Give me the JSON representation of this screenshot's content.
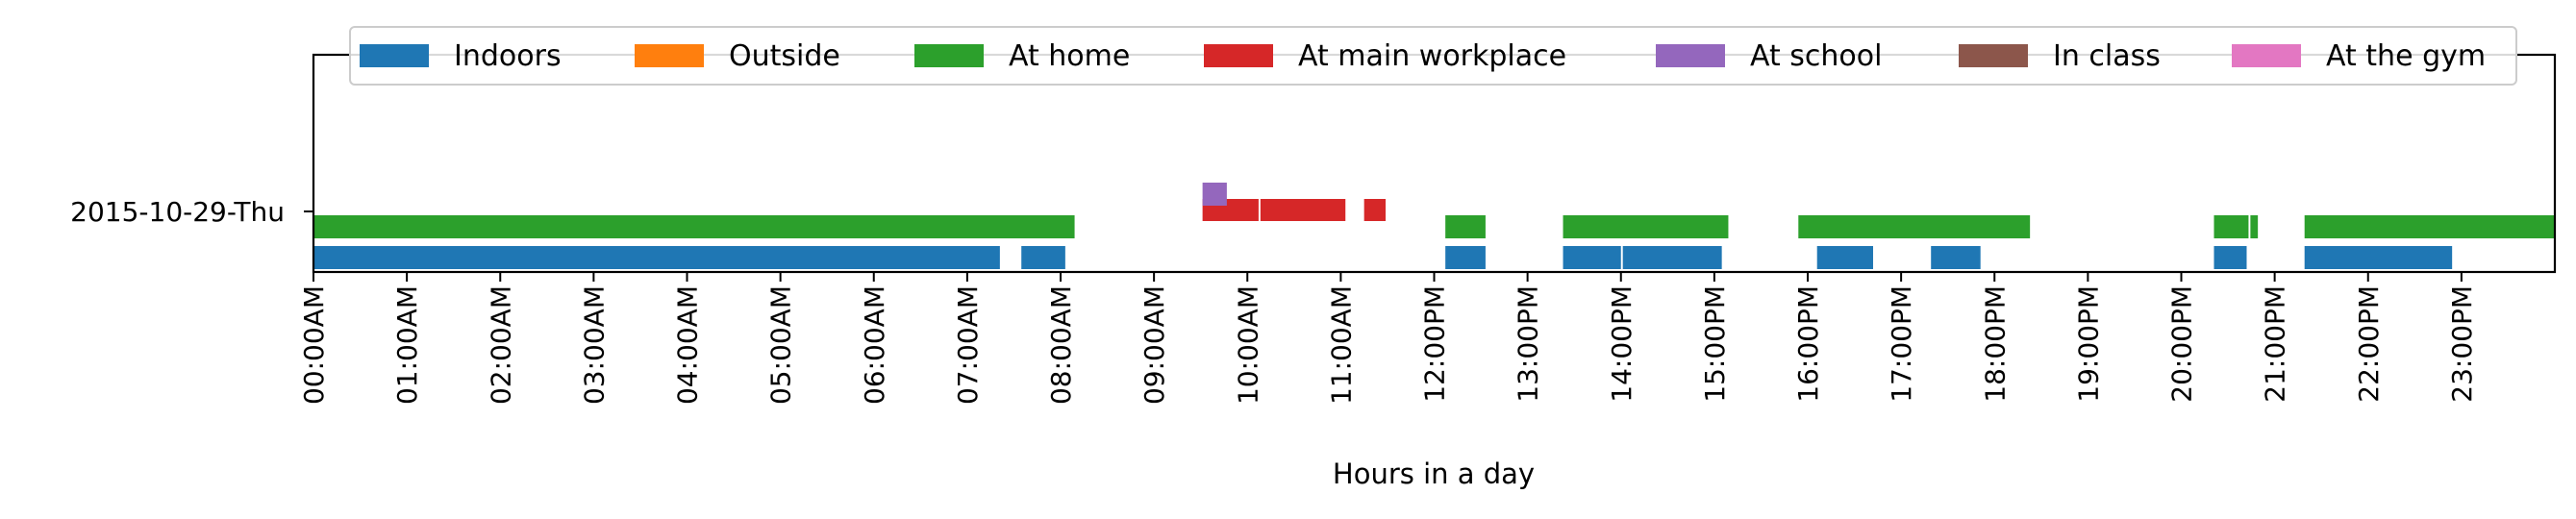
{
  "chart_data": {
    "type": "timeline",
    "xlabel": "Hours in a day",
    "x_unit": "hours",
    "xlim": [
      0,
      24
    ],
    "x_tick_labels": [
      "00:00AM",
      "01:00AM",
      "02:00AM",
      "03:00AM",
      "04:00AM",
      "05:00AM",
      "06:00AM",
      "07:00AM",
      "08:00AM",
      "09:00AM",
      "10:00AM",
      "11:00AM",
      "12:00PM",
      "13:00PM",
      "14:00PM",
      "15:00PM",
      "16:00PM",
      "17:00PM",
      "18:00PM",
      "19:00PM",
      "20:00PM",
      "21:00PM",
      "22:00PM",
      "23:00PM"
    ],
    "y_tick_labels": [
      "2015-10-29-Thu"
    ],
    "legend_position": "top",
    "legend": [
      {
        "name": "Indoors",
        "color": "#1f77b4"
      },
      {
        "name": "Outside",
        "color": "#ff7f0e"
      },
      {
        "name": "At home",
        "color": "#2ca02c"
      },
      {
        "name": "At main workplace",
        "color": "#d62728"
      },
      {
        "name": "At school",
        "color": "#9467bd"
      },
      {
        "name": "In class",
        "color": "#8c564b"
      },
      {
        "name": "At the gym",
        "color": "#e377c2"
      }
    ],
    "series": [
      {
        "name": "Indoors",
        "color": "#1f77b4",
        "intervals": [
          [
            0.0,
            7.35
          ],
          [
            7.58,
            8.05
          ],
          [
            12.12,
            12.55
          ],
          [
            13.38,
            14.0
          ],
          [
            14.02,
            15.08
          ],
          [
            16.1,
            16.7
          ],
          [
            17.32,
            17.85
          ],
          [
            20.35,
            20.7
          ],
          [
            21.32,
            22.9
          ]
        ]
      },
      {
        "name": "At home",
        "color": "#2ca02c",
        "intervals": [
          [
            0.0,
            8.15
          ],
          [
            12.12,
            12.55
          ],
          [
            13.38,
            15.15
          ],
          [
            15.9,
            18.38
          ],
          [
            20.35,
            20.72
          ],
          [
            20.74,
            20.82
          ],
          [
            21.32,
            24.0
          ]
        ]
      },
      {
        "name": "At main workplace",
        "color": "#d62728",
        "intervals": [
          [
            9.52,
            10.12
          ],
          [
            10.14,
            11.05
          ],
          [
            11.25,
            11.48
          ]
        ]
      },
      {
        "name": "At school",
        "color": "#9467bd",
        "intervals": [
          [
            9.52,
            9.78
          ]
        ]
      }
    ]
  }
}
